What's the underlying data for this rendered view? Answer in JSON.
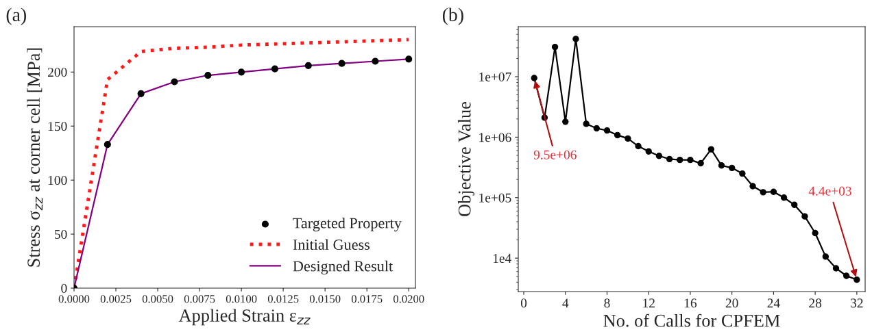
{
  "chart_data": [
    {
      "type": "line",
      "title": "(a)",
      "xlabel": "Applied Strain ε$_{zz}$",
      "ylabel": "Stress σ$_{zz}$ at corner cell [MPa]",
      "x": [
        0,
        0.002,
        0.004,
        0.006,
        0.008,
        0.01,
        0.012,
        0.014,
        0.016,
        0.018,
        0.02
      ],
      "series": [
        {
          "name": "Targeted Property",
          "type": "scatter",
          "color": "#000000",
          "marker": "circle",
          "values": [
            0,
            133,
            180,
            191,
            197,
            200,
            203,
            206,
            208,
            210,
            212
          ]
        },
        {
          "name": "Initial Guess",
          "type": "line",
          "color": "#ff1a1a",
          "line_style": "dotted",
          "values": [
            0,
            193,
            219,
            222,
            223,
            225,
            226,
            227,
            228,
            229,
            230
          ]
        },
        {
          "name": "Designed Result",
          "type": "line",
          "color": "#800080",
          "line_style": "solid",
          "values": [
            0,
            133,
            180,
            191,
            197,
            200,
            203,
            206,
            208,
            210,
            212
          ]
        }
      ],
      "xlim": [
        0,
        0.0204
      ],
      "ylim": [
        0,
        242
      ],
      "xticks": [
        {
          "value": 0,
          "label": "0.0000"
        },
        {
          "value": 0.0025,
          "label": "0.0025"
        },
        {
          "value": 0.005,
          "label": "0.0050"
        },
        {
          "value": 0.0075,
          "label": "0.0075"
        },
        {
          "value": 0.01,
          "label": "0.0100"
        },
        {
          "value": 0.0125,
          "label": "0.0125"
        },
        {
          "value": 0.015,
          "label": "0.0150"
        },
        {
          "value": 0.0175,
          "label": "0.0175"
        },
        {
          "value": 0.02,
          "label": "0.0200"
        }
      ],
      "yticks": [
        0,
        50,
        100,
        150,
        200
      ],
      "legend": "lower right",
      "grid": false
    },
    {
      "type": "line",
      "title": "(b)",
      "xlabel": "No. of Calls for CPFEM",
      "ylabel": "Objective Value",
      "log": "y",
      "x": [
        1,
        2,
        3,
        4,
        5,
        6,
        7,
        8,
        9,
        10,
        11,
        12,
        13,
        14,
        15,
        16,
        17,
        18,
        19,
        20,
        21,
        22,
        23,
        24,
        25,
        26,
        27,
        28,
        29,
        30,
        31,
        32
      ],
      "series": [
        {
          "color": "#000000",
          "marker": "circle",
          "values": [
            9500000,
            2100000,
            31000000,
            1800000,
            42000000,
            1660000,
            1400000,
            1290000,
            1080000,
            950000,
            710000,
            580000,
            490000,
            435000,
            420000,
            420000,
            370000,
            630000,
            340000,
            310000,
            250000,
            155000,
            123000,
            125000,
            100000,
            76000,
            49000,
            26000,
            10600,
            6800,
            5100,
            4400
          ]
        }
      ],
      "xlim": [
        -0.53,
        32.8
      ],
      "ylim": [
        2800,
        67000000
      ],
      "xticks": [
        0,
        4,
        8,
        12,
        16,
        20,
        24,
        28,
        32
      ],
      "yticks": [
        {
          "value": 10000,
          "label": "1e4"
        },
        {
          "value": 100000,
          "label": "1e+05"
        },
        {
          "value": 1000000,
          "label": "1e+06"
        },
        {
          "value": 10000000,
          "label": "1e+07"
        }
      ],
      "annotations": [
        {
          "text": "9.5e+06",
          "x": 1,
          "y": 9500000
        },
        {
          "text": "4.4e+03",
          "x": 32,
          "y": 4400
        }
      ],
      "legend": false,
      "grid": false
    }
  ]
}
